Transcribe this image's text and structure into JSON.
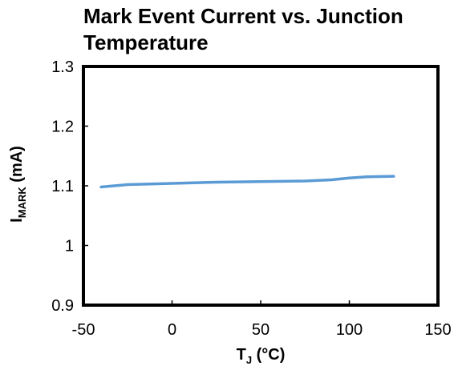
{
  "chart_data": {
    "type": "line",
    "title_lines": [
      "Mark Event Current vs. Junction",
      "Temperature"
    ],
    "xlabel": {
      "main": "T",
      "sub": "J",
      "rest": " (°C)"
    },
    "ylabel": {
      "main": "I",
      "sub": "MARK",
      "rest": " (mA)"
    },
    "xlim": [
      -50,
      150
    ],
    "ylim": [
      0.9,
      1.3
    ],
    "x_ticks": [
      -50,
      0,
      50,
      100,
      150
    ],
    "y_ticks": [
      0.9,
      1,
      1.1,
      1.2,
      1.3
    ],
    "x_tick_labels": [
      "-50",
      "0",
      "50",
      "100",
      "150"
    ],
    "y_tick_labels": [
      "0.9",
      "1",
      "1.1",
      "1.2",
      "1.3"
    ],
    "grid": false,
    "series": [
      {
        "color": "#5b9bd5",
        "x": [
          -40,
          -25,
          0,
          25,
          50,
          75,
          90,
          100,
          110,
          125
        ],
        "y": [
          1.098,
          1.102,
          1.104,
          1.106,
          1.107,
          1.108,
          1.11,
          1.113,
          1.115,
          1.116
        ]
      }
    ]
  }
}
